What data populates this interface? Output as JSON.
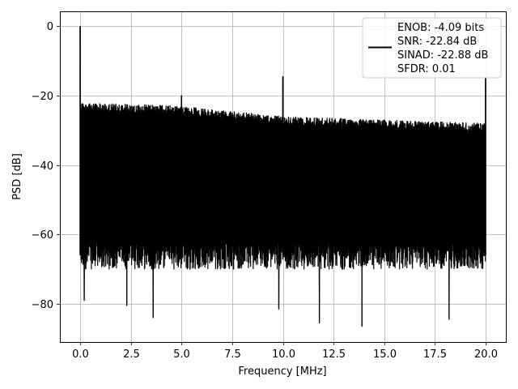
{
  "chart_data": {
    "type": "line",
    "title": "",
    "xlabel": "Frequency [MHz]",
    "ylabel": "PSD [dB]",
    "xlim": [
      -1.0,
      21.0
    ],
    "ylim": [
      -91.0,
      4.3
    ],
    "xticks": [
      0.0,
      2.5,
      5.0,
      7.5,
      10.0,
      12.5,
      15.0,
      17.5,
      20.0
    ],
    "xtick_labels": [
      "0.0",
      "2.5",
      "5.0",
      "7.5",
      "10.0",
      "12.5",
      "15.0",
      "17.5",
      "20.0"
    ],
    "yticks": [
      0,
      -20,
      -40,
      -60,
      -80
    ],
    "ytick_labels": [
      "0",
      "−20",
      "−40",
      "−60",
      "−80"
    ],
    "grid": true,
    "legend": {
      "placement": "top-right",
      "lines": [
        "ENOB: -4.09 bits",
        "SNR: -22.84 dB",
        "SINAD: -22.88 dB",
        "SFDR: 0.01"
      ]
    },
    "series": [
      {
        "color": "#000000",
        "noise_band": {
          "ceiling": [
            [
              0.0,
              -22.0
            ],
            [
              5.0,
              -23.0
            ],
            [
              10.0,
              -26.0
            ],
            [
              15.0,
              -27.0
            ],
            [
              20.0,
              -28.0
            ]
          ],
          "floor": -66.0
        },
        "spikes": [
          {
            "x": 0.0,
            "y": 0.0
          },
          {
            "x": 5.0,
            "y": -20.0
          },
          {
            "x": 10.0,
            "y": -14.5
          },
          {
            "x": 20.0,
            "y": -14.5
          }
        ],
        "low_dips": [
          {
            "x": 0.2,
            "y": -79.0
          },
          {
            "x": 2.3,
            "y": -80.5
          },
          {
            "x": 3.6,
            "y": -84.0
          },
          {
            "x": 9.8,
            "y": -81.5
          },
          {
            "x": 11.8,
            "y": -85.5
          },
          {
            "x": 13.9,
            "y": -86.5
          },
          {
            "x": 18.2,
            "y": -84.5
          }
        ]
      }
    ]
  }
}
